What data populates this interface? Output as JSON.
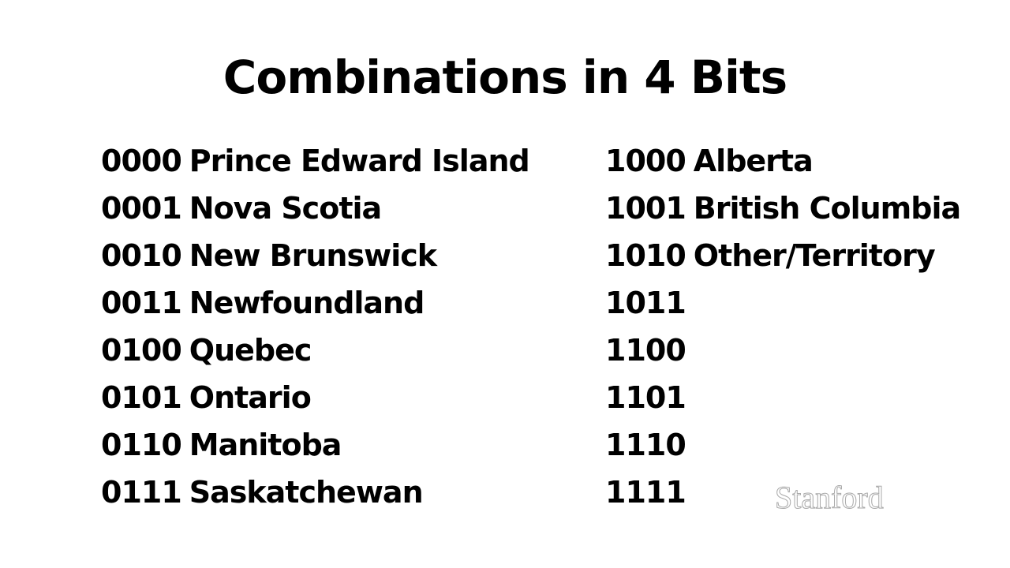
{
  "title": "Combinations in 4 Bits",
  "left_column": [
    {
      "code": "0000",
      "name": "Prince Edward Island"
    },
    {
      "code": "0001",
      "name": "Nova Scotia"
    },
    {
      "code": "0010",
      "name": "New Brunswick"
    },
    {
      "code": "0011",
      "name": "Newfoundland"
    },
    {
      "code": "0100",
      "name": "Quebec"
    },
    {
      "code": "0101",
      "name": "Ontario"
    },
    {
      "code": "0110",
      "name": "Manitoba"
    },
    {
      "code": "0111",
      "name": "Saskatchewan"
    }
  ],
  "right_column": [
    {
      "code": "1000",
      "name": "Alberta"
    },
    {
      "code": "1001",
      "name": "British Columbia"
    },
    {
      "code": "1010",
      "name": "Other/Territory"
    },
    {
      "code": "1011",
      "name": ""
    },
    {
      "code": "1100",
      "name": ""
    },
    {
      "code": "1101",
      "name": ""
    },
    {
      "code": "1110",
      "name": ""
    },
    {
      "code": "1111",
      "name": ""
    }
  ],
  "watermark": "Stanford"
}
